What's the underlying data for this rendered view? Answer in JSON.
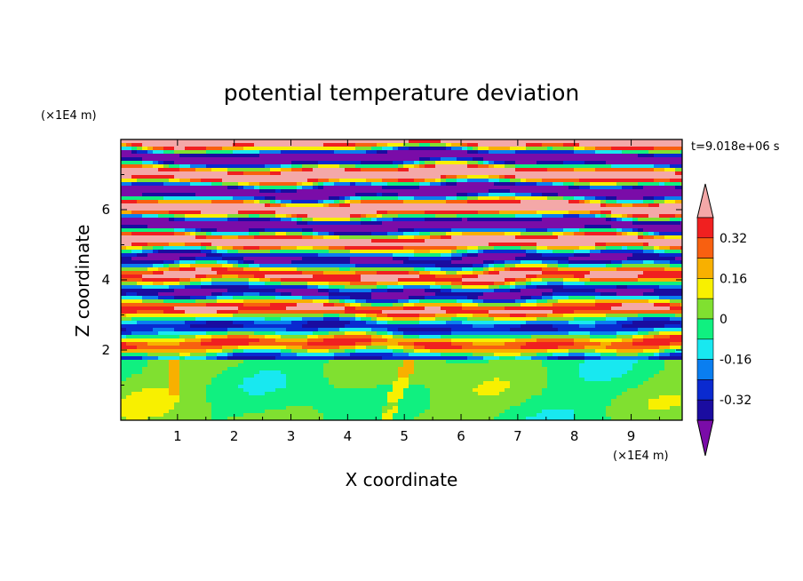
{
  "chart_data": {
    "type": "heatmap",
    "title": "potential temperature deviation",
    "xlabel": "X coordinate",
    "ylabel": "Z coordinate",
    "x_unit": "(×1E4 m)",
    "y_unit": "(×1E4 m)",
    "time_label": "t=9.018e+06 s",
    "xlim": [
      0,
      9.9
    ],
    "ylim": [
      0,
      8
    ],
    "x_ticks": [
      "1",
      "2",
      "3",
      "4",
      "5",
      "6",
      "7",
      "8",
      "9"
    ],
    "y_ticks": [
      "2",
      "4",
      "6"
    ],
    "colorbar": {
      "levels": [
        -0.4,
        -0.32,
        -0.24,
        -0.16,
        -0.08,
        0,
        0.08,
        0.16,
        0.24,
        0.32,
        0.4
      ],
      "labels": [
        "0.32",
        "0.16",
        "0",
        "-0.16",
        "-0.32"
      ],
      "label_values": [
        0.32,
        0.16,
        0,
        -0.16,
        -0.32
      ],
      "colors": [
        "#7a0ca8",
        "#1a0ca0",
        "#0a2ad0",
        "#0a7ef0",
        "#18e8f0",
        "#10f080",
        "#80e030",
        "#f8f000",
        "#f8b000",
        "#f86010",
        "#f02020",
        "#f4a8a8"
      ],
      "extend": "both"
    }
  }
}
